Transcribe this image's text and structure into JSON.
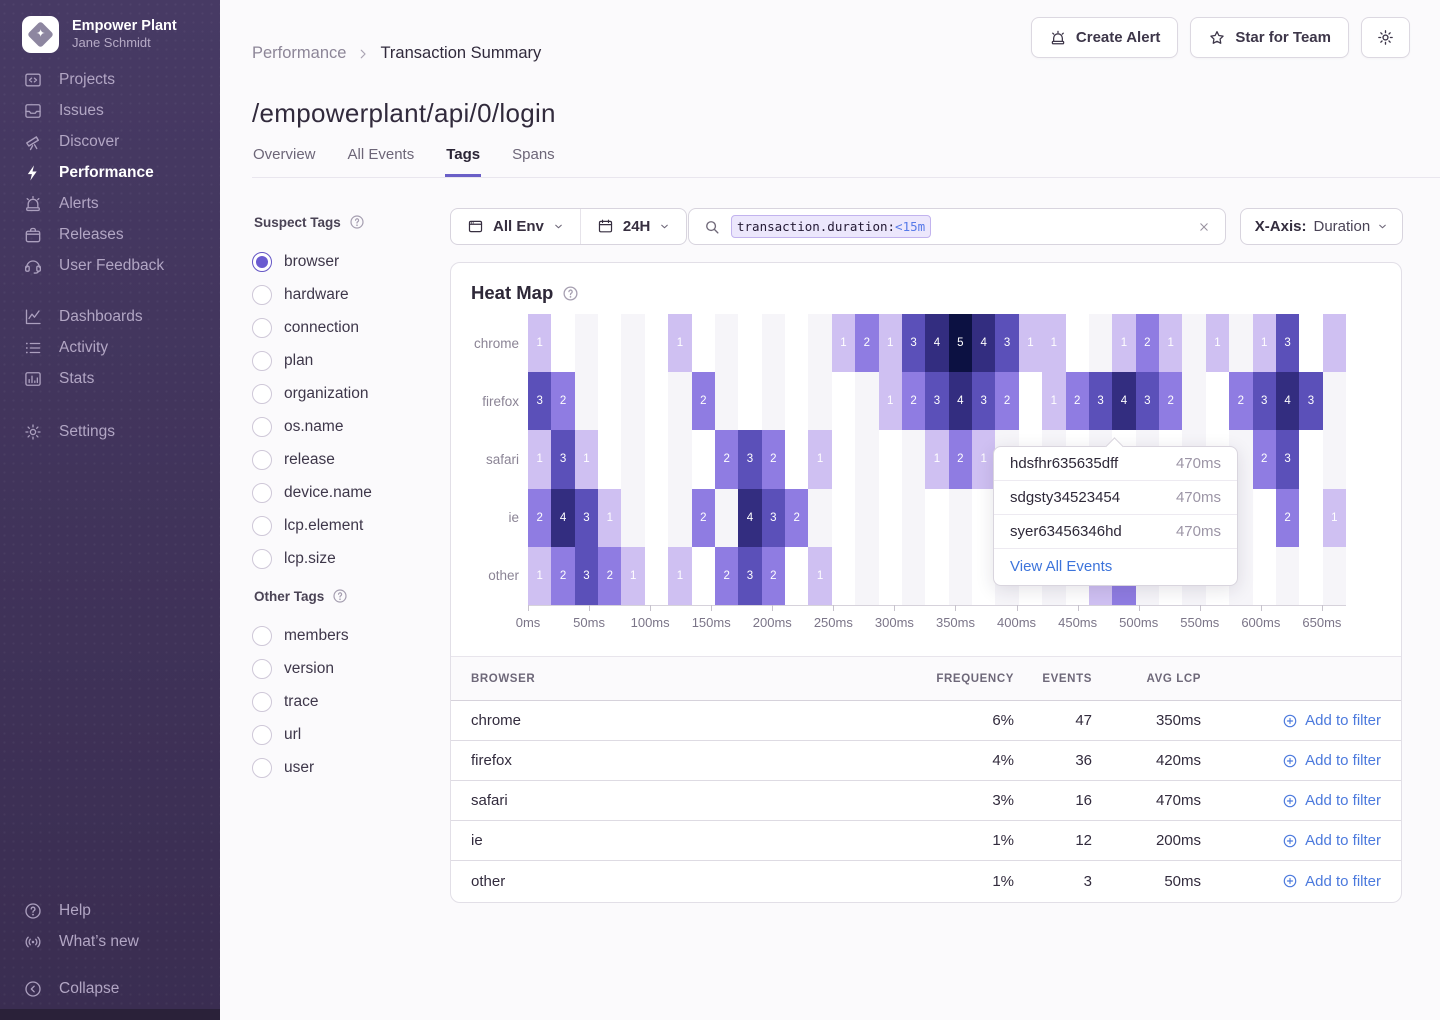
{
  "sidebar": {
    "org_name": "Empower Plant",
    "user_name": "Jane Schmidt",
    "nav_primary": [
      {
        "label": "Projects",
        "icon": "projects-icon",
        "active": false
      },
      {
        "label": "Issues",
        "icon": "issues-icon",
        "active": false
      },
      {
        "label": "Discover",
        "icon": "discover-icon",
        "active": false
      },
      {
        "label": "Performance",
        "icon": "performance-icon",
        "active": true
      },
      {
        "label": "Alerts",
        "icon": "alerts-icon",
        "active": false
      },
      {
        "label": "Releases",
        "icon": "releases-icon",
        "active": false
      },
      {
        "label": "User Feedback",
        "icon": "user-feedback-icon",
        "active": false
      }
    ],
    "nav_secondary": [
      {
        "label": "Dashboards",
        "icon": "dashboards-icon",
        "active": false
      },
      {
        "label": "Activity",
        "icon": "activity-icon",
        "active": false
      },
      {
        "label": "Stats",
        "icon": "stats-icon",
        "active": false
      }
    ],
    "nav_tertiary": [
      {
        "label": "Settings",
        "icon": "settings-icon",
        "active": false
      }
    ],
    "nav_footer": [
      {
        "label": "Help",
        "icon": "help-icon",
        "active": false
      },
      {
        "label": "What’s new",
        "icon": "whats-new-icon",
        "active": false
      }
    ],
    "collapse": {
      "label": "Collapse",
      "icon": "collapse-icon"
    }
  },
  "header": {
    "breadcrumb": {
      "parent": "Performance",
      "current": "Transaction Summary"
    },
    "actions": {
      "create_alert": "Create Alert",
      "star": "Star for Team"
    },
    "title": "/empowerplant/api/0/login",
    "tabs": [
      {
        "label": "Overview",
        "active": false
      },
      {
        "label": "All Events",
        "active": false
      },
      {
        "label": "Tags",
        "active": true
      },
      {
        "label": "Spans",
        "active": false
      }
    ]
  },
  "filters": {
    "suspect": {
      "title": "Suspect Tags",
      "selected": "browser",
      "options": [
        "browser",
        "hardware",
        "connection",
        "plan",
        "organization",
        "os.name",
        "release",
        "device.name",
        "lcp.element",
        "lcp.size"
      ]
    },
    "other": {
      "title": "Other Tags",
      "options": [
        "members",
        "version",
        "trace",
        "url",
        "user"
      ]
    }
  },
  "controls": {
    "environment": "All Env",
    "time_range": "24H",
    "search_key": "transaction.duration:",
    "search_value": "<15m",
    "xaxis_label": "X-Axis:",
    "xaxis_value": "Duration"
  },
  "chart_data": {
    "type": "heatmap",
    "title": "Heat Map",
    "rows": [
      "chrome",
      "firefox",
      "safari",
      "ie",
      "other"
    ],
    "x_labels": [
      "0ms",
      "50ms",
      "100ms",
      "150ms",
      "200ms",
      "250ms",
      "300ms",
      "350ms",
      "400ms",
      "450ms",
      "500ms",
      "550ms",
      "600ms",
      "650ms"
    ],
    "columns": 35,
    "value_range": [
      1,
      5
    ],
    "level_colors": {
      "1": "#cfc0f2",
      "2": "#8f7ce2",
      "3": "#5b50b9",
      "4": "#332d80",
      "5": "#0c1142"
    },
    "cells": {
      "chrome": [
        [
          0,
          1,
          1
        ],
        [
          6,
          1,
          1
        ],
        [
          13,
          1,
          1
        ],
        [
          14,
          2,
          1
        ],
        [
          15,
          1,
          1
        ],
        [
          16,
          3,
          1
        ],
        [
          17,
          4,
          1
        ],
        [
          18,
          5,
          1
        ],
        [
          19,
          4,
          1
        ],
        [
          20,
          3,
          1
        ],
        [
          21,
          1,
          1
        ],
        [
          22,
          1,
          1
        ],
        [
          25,
          1,
          1
        ],
        [
          26,
          2,
          1
        ],
        [
          27,
          1,
          1
        ],
        [
          29,
          1,
          1
        ],
        [
          31,
          1,
          1
        ],
        [
          32,
          3,
          1
        ],
        [
          34,
          1,
          0
        ]
      ],
      "firefox": [
        [
          0,
          3,
          1
        ],
        [
          1,
          2,
          1
        ],
        [
          7,
          2,
          1
        ],
        [
          15,
          1,
          1
        ],
        [
          16,
          2,
          1
        ],
        [
          17,
          3,
          1
        ],
        [
          18,
          4,
          1
        ],
        [
          19,
          3,
          1
        ],
        [
          20,
          2,
          1
        ],
        [
          22,
          1,
          1
        ],
        [
          23,
          2,
          1
        ],
        [
          24,
          3,
          1
        ],
        [
          25,
          4,
          1
        ],
        [
          26,
          3,
          1
        ],
        [
          27,
          2,
          1
        ],
        [
          30,
          2,
          1
        ],
        [
          31,
          3,
          1
        ],
        [
          32,
          4,
          1
        ],
        [
          33,
          3,
          1
        ]
      ],
      "safari": [
        [
          0,
          1,
          1
        ],
        [
          1,
          3,
          1
        ],
        [
          2,
          1,
          1
        ],
        [
          8,
          2,
          1
        ],
        [
          9,
          3,
          1
        ],
        [
          10,
          2,
          1
        ],
        [
          12,
          1,
          1
        ],
        [
          17,
          1,
          1
        ],
        [
          18,
          2,
          1
        ],
        [
          19,
          1,
          1
        ],
        [
          31,
          2,
          1
        ],
        [
          32,
          3,
          1
        ]
      ],
      "ie": [
        [
          0,
          2,
          1
        ],
        [
          1,
          4,
          1
        ],
        [
          2,
          3,
          1
        ],
        [
          3,
          1,
          1
        ],
        [
          7,
          2,
          1
        ],
        [
          9,
          4,
          1
        ],
        [
          10,
          3,
          1
        ],
        [
          11,
          2,
          1
        ],
        [
          32,
          2,
          1
        ],
        [
          34,
          1,
          1
        ]
      ],
      "other": [
        [
          0,
          1,
          1
        ],
        [
          1,
          2,
          1
        ],
        [
          2,
          3,
          1
        ],
        [
          3,
          2,
          1
        ],
        [
          4,
          1,
          1
        ],
        [
          6,
          1,
          1
        ],
        [
          8,
          2,
          1
        ],
        [
          9,
          3,
          1
        ],
        [
          10,
          2,
          1
        ],
        [
          12,
          1,
          1
        ],
        [
          24,
          1,
          0
        ],
        [
          25,
          2,
          0
        ]
      ]
    }
  },
  "tooltip": {
    "events": [
      {
        "id": "hdsfhr635635dff",
        "duration": "470ms"
      },
      {
        "id": "sdgsty34523454",
        "duration": "470ms"
      },
      {
        "id": "syer63456346hd",
        "duration": "470ms"
      }
    ],
    "link_label": "View All Events"
  },
  "table": {
    "headers": [
      "BROWSER",
      "FREQUENCY",
      "EVENTS",
      "AVG LCP"
    ],
    "action_label": "Add to filter",
    "rows": [
      {
        "browser": "chrome",
        "frequency": "6%",
        "events": "47",
        "avg_lcp": "350ms"
      },
      {
        "browser": "firefox",
        "frequency": "4%",
        "events": "36",
        "avg_lcp": "420ms"
      },
      {
        "browser": "safari",
        "frequency": "3%",
        "events": "16",
        "avg_lcp": "470ms"
      },
      {
        "browser": "ie",
        "frequency": "1%",
        "events": "12",
        "avg_lcp": "200ms"
      },
      {
        "browser": "other",
        "frequency": "1%",
        "events": "3",
        "avg_lcp": "50ms"
      }
    ]
  }
}
